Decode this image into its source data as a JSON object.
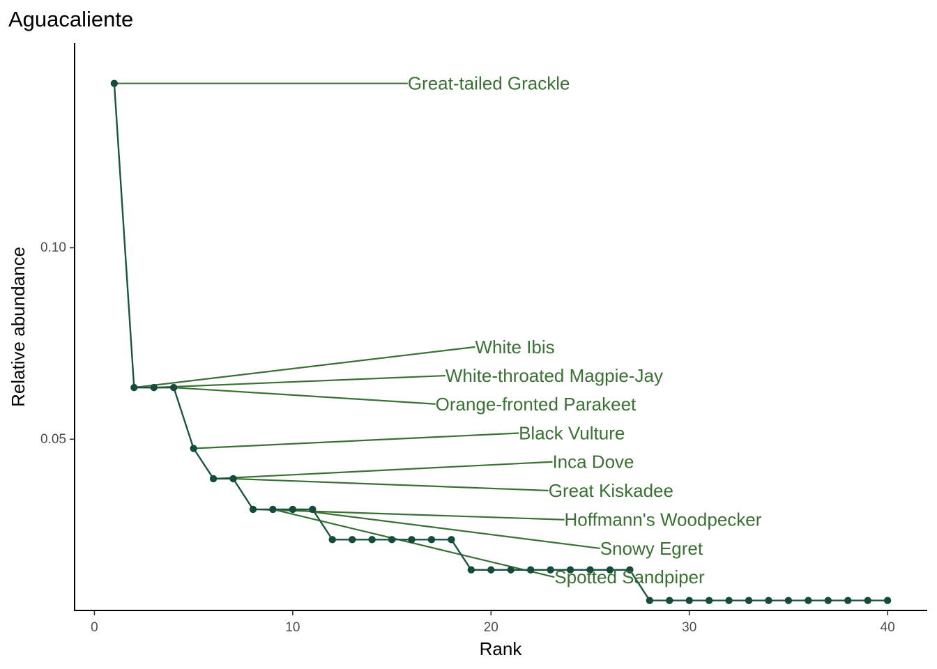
{
  "chart_data": {
    "type": "line",
    "title": "Aguacaliente",
    "xlabel": "Rank",
    "ylabel": "Relative abundance",
    "xlim": [
      -1,
      42
    ],
    "ylim": [
      0.0053,
      0.1534
    ],
    "x_ticks": [
      0,
      10,
      20,
      30,
      40
    ],
    "x_tick_labels": [
      "0",
      "10",
      "20",
      "30",
      "40"
    ],
    "y_ticks": [
      0.05,
      0.1
    ],
    "y_tick_labels": [
      "0.05",
      "0.10"
    ],
    "grid": false,
    "legend": "none",
    "series": [
      {
        "x": [
          1,
          2,
          3,
          4,
          5,
          6,
          7,
          8,
          9,
          10,
          11,
          12,
          13,
          14,
          15,
          16,
          17,
          18,
          19,
          20,
          21,
          22,
          23,
          24,
          25,
          26,
          27,
          28,
          29,
          30,
          31,
          32,
          33,
          34,
          35,
          36,
          37,
          38,
          39,
          40
        ],
        "values": [
          0.1429,
          0.0635,
          0.0635,
          0.0635,
          0.0476,
          0.0397,
          0.0397,
          0.0317,
          0.0317,
          0.0317,
          0.0317,
          0.0238,
          0.0238,
          0.0238,
          0.0238,
          0.0238,
          0.0238,
          0.0238,
          0.0159,
          0.0159,
          0.0159,
          0.0159,
          0.0159,
          0.0159,
          0.0159,
          0.0159,
          0.0159,
          0.0079,
          0.0079,
          0.0079,
          0.0079,
          0.0079,
          0.0079,
          0.0079,
          0.0079,
          0.0079,
          0.0079,
          0.0079,
          0.0079,
          0.0079
        ]
      }
    ],
    "annotations": [
      {
        "text": "Great-tailed Grackle",
        "rank": 1,
        "label_x": 15.8,
        "label_y": 0.1429
      },
      {
        "text": "White Ibis",
        "rank": 2,
        "label_x": 19.2,
        "label_y": 0.0741
      },
      {
        "text": "White-throated Magpie-Jay",
        "rank": 3,
        "label_x": 17.7,
        "label_y": 0.0666
      },
      {
        "text": "Orange-fronted Parakeet",
        "rank": 4,
        "label_x": 17.2,
        "label_y": 0.0592
      },
      {
        "text": "Black Vulture",
        "rank": 5,
        "label_x": 21.4,
        "label_y": 0.0516
      },
      {
        "text": "Inca Dove",
        "rank": 6,
        "label_x": 23.1,
        "label_y": 0.0441
      },
      {
        "text": "Great Kiskadee",
        "rank": 7,
        "label_x": 22.9,
        "label_y": 0.0366
      },
      {
        "text": "Hoffmann's Woodpecker",
        "rank": 8,
        "label_x": 23.7,
        "label_y": 0.029
      },
      {
        "text": "Snowy Egret",
        "rank": 10,
        "label_x": 25.5,
        "label_y": 0.0215
      },
      {
        "text": "Spotted Sandpiper",
        "rank": 9,
        "label_x": 23.2,
        "label_y": 0.014
      }
    ],
    "colors": {
      "line": "#1d5341",
      "points": "#164a3b",
      "annotation": "#3a7033",
      "axis": "#000000",
      "tick_text": "#4d4d4d"
    }
  }
}
